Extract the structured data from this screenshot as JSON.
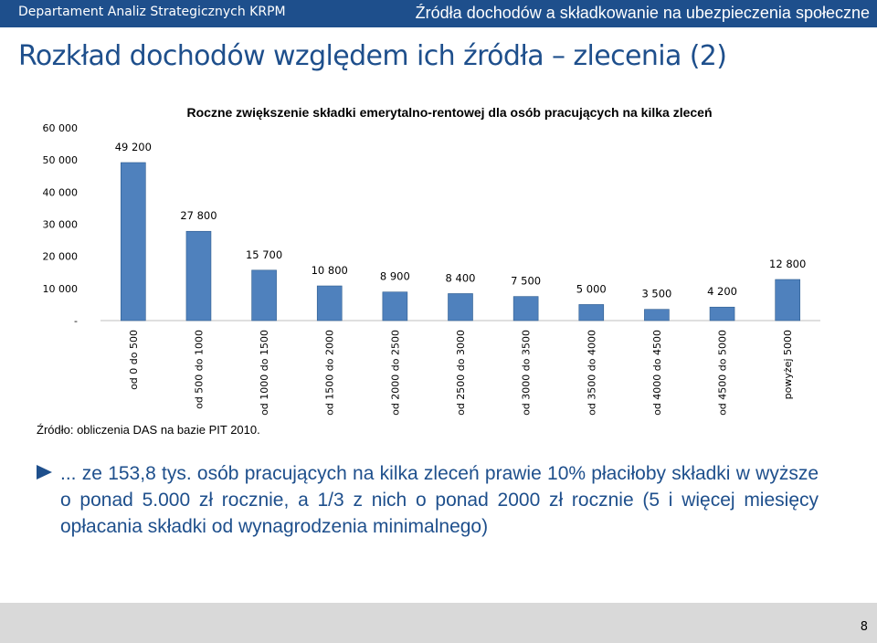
{
  "header": {
    "left_text": "Departament Analiz Strategicznych KRPM",
    "right_text": "Źródła dochodów a składkowanie na ubezpieczenia społeczne"
  },
  "slide": {
    "title": "Rozkład dochodów względem ich źródła – zlecenia (2)",
    "source": "Źródło: obliczenia DAS na bazie PIT 2010.",
    "bullet": "... ze 153,8 tys. osób pracujących na kilka zleceń prawie 10% płaciłoby składki w wyższe o ponad 5.000 zł rocznie, a 1/3 z nich o ponad 2000 zł rocznie (5 i więcej miesięcy opłacania składki od wynagrodzenia minimalnego)",
    "page_number": "8"
  },
  "colors": {
    "brand_blue": "#1e4f8c",
    "bar_fill": "#4f81bd",
    "bar_stroke": "#2e5c8f",
    "footer_gray": "#d9d9d9"
  },
  "chart_data": {
    "type": "bar",
    "title": "Roczne zwiększenie składki emerytalno-rentowej dla osób pracujących na kilka zleceń",
    "categories": [
      "od 0 do 500",
      "od 500 do 1000",
      "od 1000 do 1500",
      "od 1500 do 2000",
      "od 2000 do 2500",
      "od 2500 do 3000",
      "od 3000 do 3500",
      "od 3500 do 4000",
      "od 4000 do 4500",
      "od 4500 do 5000",
      "powyżej 5000"
    ],
    "values": [
      49200,
      27800,
      15700,
      10800,
      8900,
      8400,
      7500,
      5000,
      3500,
      4200,
      12800
    ],
    "data_labels": [
      "49 200",
      "27 800",
      "15 700",
      "10 800",
      "8 900",
      "8 400",
      "7 500",
      "5 000",
      "3 500",
      "4 200",
      "12 800"
    ],
    "y_ticks": [
      "-",
      "10 000",
      "20 000",
      "30 000",
      "40 000",
      "50 000",
      "60 000"
    ],
    "ylim": [
      0,
      60000
    ],
    "xlabel": "",
    "ylabel": "",
    "grid": false,
    "legend": "none"
  }
}
